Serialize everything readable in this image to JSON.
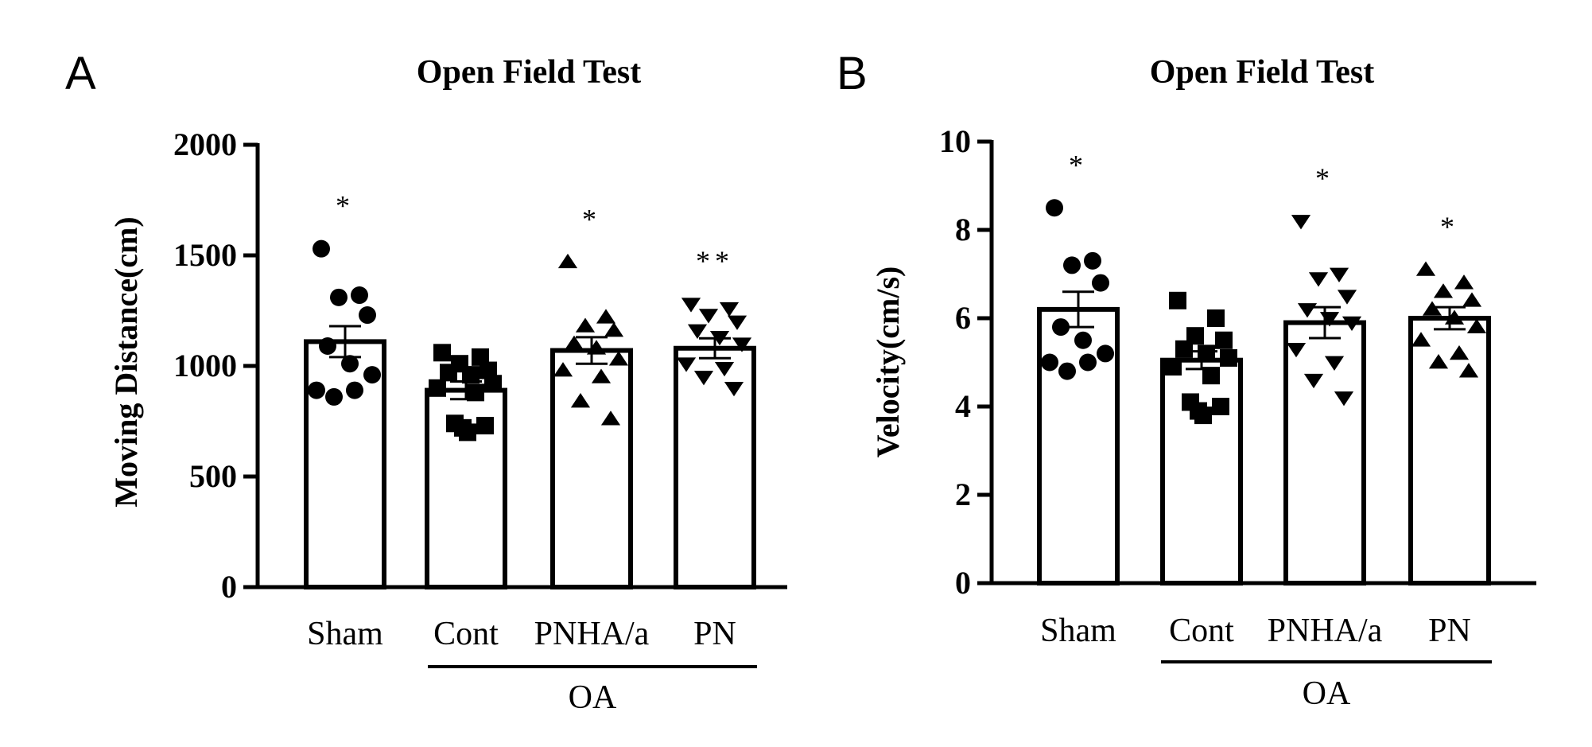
{
  "chart_data": [
    {
      "type": "bar",
      "panel_label": "A",
      "title": "Open Field Test",
      "ylabel": "Moving Distance(cm)",
      "xlabel": "",
      "ylim": [
        0,
        2000
      ],
      "yticks": [
        0,
        500,
        1000,
        1500,
        2000
      ],
      "categories": [
        "Sham",
        "Cont",
        "PNHA/a",
        "PN"
      ],
      "group": {
        "label": "OA",
        "members": [
          "Cont",
          "PNHA/a",
          "PN"
        ]
      },
      "colors": {
        "bar_fill": "#ffffff",
        "bar_edge": "#000000",
        "marker": "#000000"
      },
      "series": [
        {
          "name": "Sham",
          "marker": "circle",
          "mean": 1110,
          "sem": 70,
          "significance": "*",
          "points": [
            1530,
            1320,
            1310,
            1230,
            1090,
            1010,
            960,
            890,
            890,
            860
          ]
        },
        {
          "name": "Cont",
          "marker": "square",
          "mean": 890,
          "sem": 40,
          "significance": "",
          "points": [
            1060,
            1040,
            1010,
            980,
            970,
            960,
            920,
            900,
            880,
            740,
            730,
            720,
            700
          ]
        },
        {
          "name": "PNHA/a",
          "marker": "triangle-up",
          "mean": 1070,
          "sem": 60,
          "significance": "*",
          "points": [
            1470,
            1220,
            1180,
            1160,
            1100,
            1080,
            1030,
            980,
            950,
            840,
            760
          ]
        },
        {
          "name": "PN",
          "marker": "triangle-down",
          "mean": 1080,
          "sem": 45,
          "significance": "**",
          "points": [
            1280,
            1260,
            1230,
            1200,
            1160,
            1130,
            1100,
            1010,
            990,
            950,
            900
          ]
        }
      ]
    },
    {
      "type": "bar",
      "panel_label": "B",
      "title": "Open Field Test",
      "ylabel": "Velocity(cm/s)",
      "xlabel": "",
      "ylim": [
        0,
        10
      ],
      "yticks": [
        0,
        2,
        4,
        6,
        8,
        10
      ],
      "categories": [
        "Sham",
        "Cont",
        "PNHA/a",
        "PN"
      ],
      "group": {
        "label": "OA",
        "members": [
          "Cont",
          "PNHA/a",
          "PN"
        ]
      },
      "colors": {
        "bar_fill": "#ffffff",
        "bar_edge": "#000000",
        "marker": "#000000"
      },
      "series": [
        {
          "name": "Sham",
          "marker": "circle",
          "mean": 6.2,
          "sem": 0.4,
          "significance": "*",
          "points": [
            8.5,
            7.3,
            7.2,
            6.8,
            5.8,
            5.5,
            5.2,
            5.0,
            5.0,
            4.8
          ]
        },
        {
          "name": "Cont",
          "marker": "square",
          "mean": 5.05,
          "sem": 0.2,
          "significance": "",
          "points": [
            6.4,
            6.0,
            5.6,
            5.5,
            5.3,
            5.2,
            5.1,
            4.9,
            4.7,
            4.1,
            4.0,
            3.9,
            3.8
          ]
        },
        {
          "name": "PNHA/a",
          "marker": "triangle-down",
          "mean": 5.9,
          "sem": 0.35,
          "significance": "*",
          "points": [
            8.2,
            7.0,
            6.9,
            6.5,
            6.2,
            6.0,
            5.9,
            5.3,
            5.0,
            4.6,
            4.2
          ]
        },
        {
          "name": "PN",
          "marker": "triangle-up",
          "mean": 6.0,
          "sem": 0.25,
          "significance": "*",
          "points": [
            7.1,
            6.8,
            6.6,
            6.4,
            6.2,
            6.0,
            5.8,
            5.5,
            5.2,
            5.0,
            4.8
          ]
        }
      ]
    }
  ]
}
